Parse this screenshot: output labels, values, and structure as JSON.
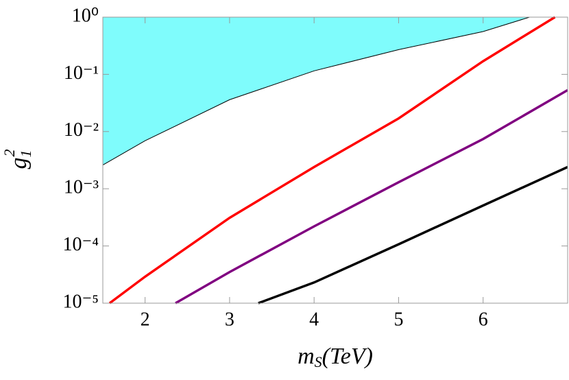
{
  "chart_data": {
    "type": "line",
    "xlabel": [
      "m",
      "S",
      "(TeV)"
    ],
    "ylabel": [
      "g",
      "1",
      "2"
    ],
    "xlim": [
      1.5,
      7
    ],
    "xticks": [
      2,
      3,
      4,
      5,
      6
    ],
    "ylim": [
      1e-05,
      1
    ],
    "log_y": true,
    "yticks": [
      {
        "value": 1,
        "label": "10⁰"
      },
      {
        "value": 0.1,
        "label": "10⁻¹"
      },
      {
        "value": 0.01,
        "label": "10⁻²"
      },
      {
        "value": 0.001,
        "label": "10⁻³"
      },
      {
        "value": 0.0001,
        "label": "10⁻⁴"
      },
      {
        "value": 1e-05,
        "label": "10⁻⁵"
      }
    ],
    "series": [
      {
        "color": "#7ffcfc",
        "fill": "above",
        "x": [
          1.5,
          2,
          3,
          4,
          5,
          6,
          6.55
        ],
        "values": [
          0.0026,
          0.0069,
          0.036,
          0.115,
          0.27,
          0.56,
          1
        ]
      },
      {
        "color": "#ff0000",
        "x": [
          1.58,
          2,
          3,
          4,
          5,
          6,
          6.85
        ],
        "values": [
          1e-05,
          2.9e-05,
          0.00031,
          0.0024,
          0.017,
          0.17,
          1
        ]
      },
      {
        "color": "#800080",
        "x": [
          2.36,
          3,
          4,
          5,
          6,
          7
        ],
        "values": [
          1e-05,
          3.5e-05,
          0.00022,
          0.0013,
          0.0074,
          0.053
        ]
      },
      {
        "color": "#000000",
        "x": [
          3.34,
          4,
          5,
          6,
          7
        ],
        "values": [
          1e-05,
          2.3e-05,
          0.000107,
          0.00051,
          0.0024
        ]
      }
    ]
  }
}
